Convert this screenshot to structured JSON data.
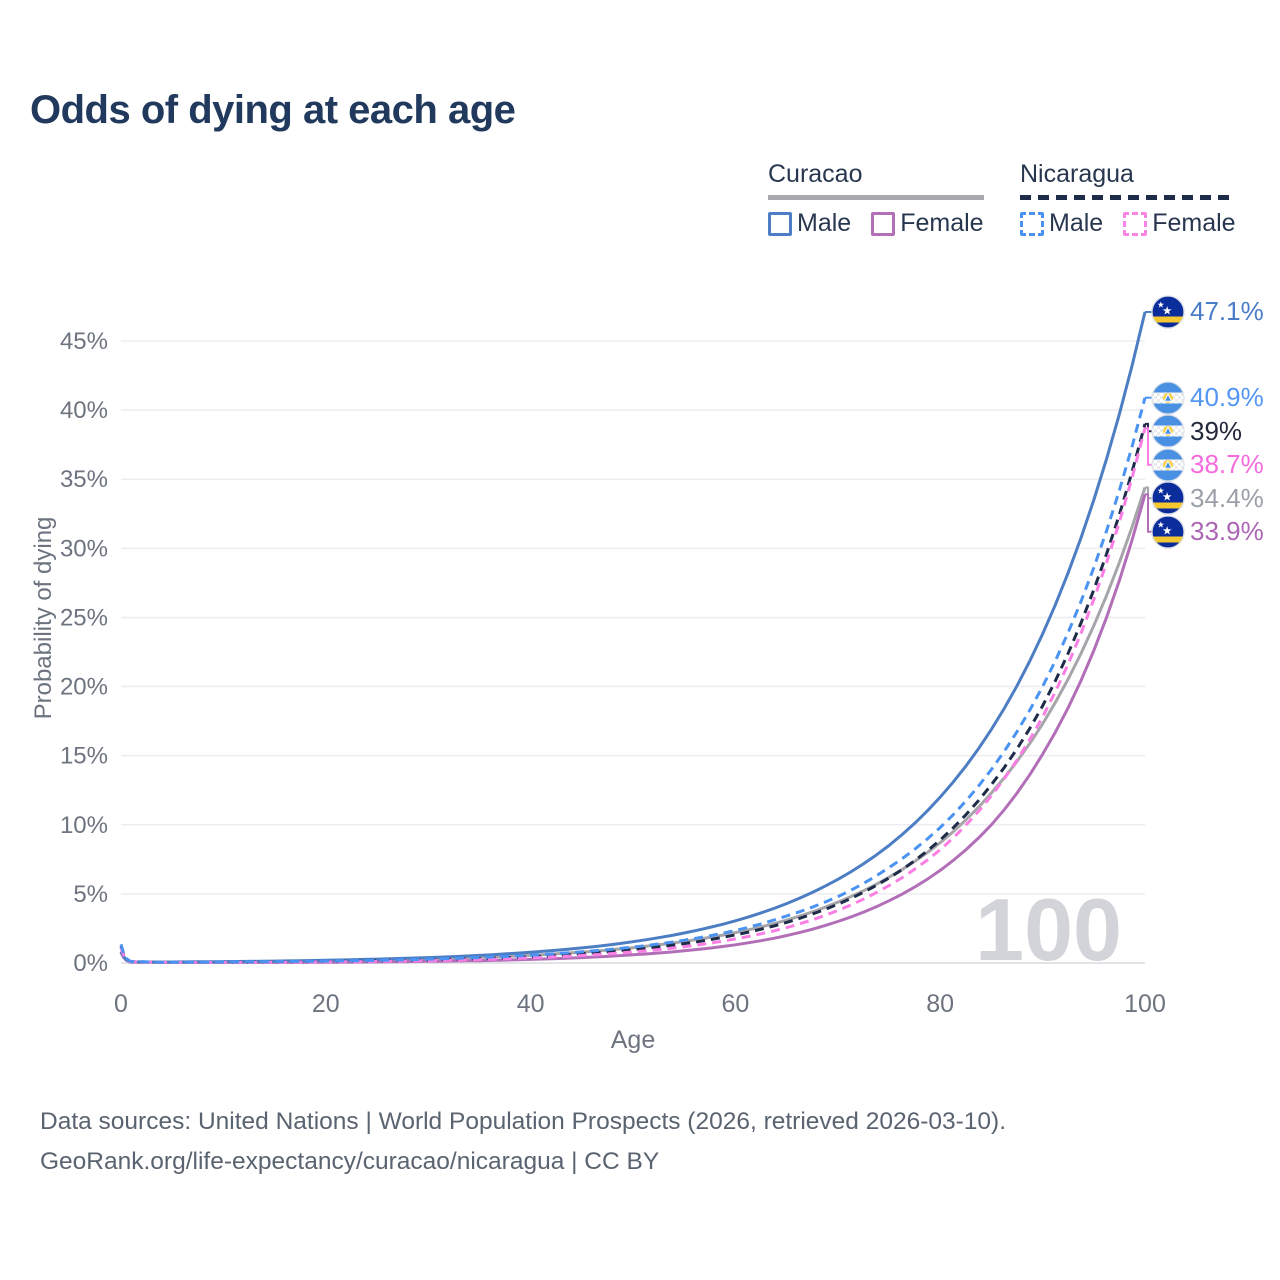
{
  "title": "Odds of dying at each age",
  "watermark": "100",
  "legend": {
    "groups": [
      {
        "name": "Curacao",
        "line_style": "solid",
        "underline_color": "#a8a8ac",
        "items": [
          {
            "label": "Male",
            "color": "#4d7ec3",
            "dashed": false
          },
          {
            "label": "Female",
            "color": "#b26fb8",
            "dashed": false
          }
        ]
      },
      {
        "name": "Nicaragua",
        "line_style": "dashed",
        "underline_color": "#1e2c49",
        "items": [
          {
            "label": "Male",
            "color": "#4b93f2",
            "dashed": true
          },
          {
            "label": "Female",
            "color": "#fa85e6",
            "dashed": true
          }
        ]
      }
    ]
  },
  "footer": {
    "line1": "Data sources: United Nations | World Population Prospects (2026, retrieved 2026-03-10).",
    "line2": "GeoRank.org/life-expectancy/curacao/nicaragua | CC BY"
  },
  "chart_data": {
    "type": "line",
    "title": "Odds of dying at each age",
    "xlabel": "Age",
    "ylabel": "Probability of dying",
    "xlim": [
      0,
      100
    ],
    "ylim": [
      0,
      47.5
    ],
    "grid": "horizontal",
    "legend_position": "top-right",
    "xticks": [
      0,
      20,
      40,
      60,
      80,
      100
    ],
    "yticks": [
      "0%",
      "5%",
      "10%",
      "15%",
      "20%",
      "25%",
      "30%",
      "35%",
      "40%",
      "45%"
    ],
    "ytick_values": [
      0,
      5,
      10,
      15,
      20,
      25,
      30,
      35,
      40,
      45
    ],
    "ages": [
      0,
      1,
      5,
      10,
      15,
      20,
      25,
      30,
      35,
      40,
      45,
      50,
      55,
      60,
      65,
      70,
      75,
      80,
      85,
      90,
      95,
      100
    ],
    "series": [
      {
        "name": "Curacao Both sexes",
        "country": "Curacao",
        "sex": "Both",
        "flag": "curacao",
        "color": "#a6a6aa",
        "dashed": false,
        "end_label": "34.4%",
        "end_value": 34.4,
        "label_color": "#9ba0a8",
        "values": [
          0.8,
          0.07,
          0.05,
          0.07,
          0.1,
          0.14,
          0.2,
          0.28,
          0.4,
          0.56,
          0.79,
          1.11,
          1.56,
          2.2,
          3.1,
          4.4,
          6.2,
          8.7,
          12.3,
          17.3,
          24.4,
          34.4
        ]
      },
      {
        "name": "Curacao Female",
        "country": "Curacao",
        "sex": "Female",
        "flag": "curacao",
        "color": "#b26fb8",
        "dashed": false,
        "end_label": "33.9%",
        "end_value": 33.9,
        "label_color": "#ab66b4",
        "values": [
          0.75,
          0.06,
          0.04,
          0.04,
          0.04,
          0.05,
          0.08,
          0.12,
          0.17,
          0.26,
          0.39,
          0.59,
          0.88,
          1.32,
          1.98,
          3.0,
          4.5,
          6.7,
          10.0,
          15.1,
          22.6,
          33.9
        ]
      },
      {
        "name": "Curacao Male",
        "country": "Curacao",
        "sex": "Male",
        "flag": "curacao",
        "color": "#4d7ec3",
        "dashed": false,
        "end_label": "47.1%",
        "end_value": 47.1,
        "label_color": "#4a7cc7",
        "values": [
          0.85,
          0.08,
          0.07,
          0.1,
          0.14,
          0.2,
          0.28,
          0.39,
          0.55,
          0.78,
          1.09,
          1.54,
          2.17,
          3.05,
          4.3,
          6.05,
          8.5,
          12.0,
          16.9,
          23.8,
          33.5,
          47.1
        ]
      },
      {
        "name": "Nicaragua Both sexes",
        "country": "Nicaragua",
        "sex": "Both",
        "flag": "nicaragua",
        "color": "#1e2c49",
        "dashed": true,
        "end_label": "39%",
        "end_value": 39.0,
        "label_color": "#23283a",
        "values": [
          1.2,
          0.09,
          0.05,
          0.05,
          0.07,
          0.11,
          0.15,
          0.22,
          0.32,
          0.46,
          0.67,
          0.97,
          1.4,
          2.03,
          2.94,
          4.25,
          6.15,
          8.9,
          12.9,
          18.6,
          27.0,
          39.0
        ]
      },
      {
        "name": "Nicaragua Female",
        "country": "Nicaragua",
        "sex": "Female",
        "flag": "nicaragua",
        "color": "#fa7ee4",
        "dashed": true,
        "end_label": "38.7%",
        "end_value": 38.7,
        "label_color": "#f56ade",
        "values": [
          1.1,
          0.08,
          0.04,
          0.04,
          0.05,
          0.08,
          0.11,
          0.17,
          0.25,
          0.37,
          0.54,
          0.8,
          1.18,
          1.74,
          2.56,
          3.8,
          5.6,
          8.2,
          12.1,
          17.8,
          26.3,
          38.7
        ]
      },
      {
        "name": "Nicaragua Male",
        "country": "Nicaragua",
        "sex": "Male",
        "flag": "nicaragua",
        "color": "#4b93f2",
        "dashed": true,
        "end_label": "40.9%",
        "end_value": 40.9,
        "label_color": "#5496f4",
        "values": [
          1.35,
          0.1,
          0.05,
          0.07,
          0.09,
          0.14,
          0.19,
          0.28,
          0.4,
          0.56,
          0.81,
          1.15,
          1.65,
          2.35,
          3.4,
          4.8,
          6.9,
          9.8,
          14.0,
          20.0,
          28.6,
          40.9
        ]
      }
    ]
  }
}
